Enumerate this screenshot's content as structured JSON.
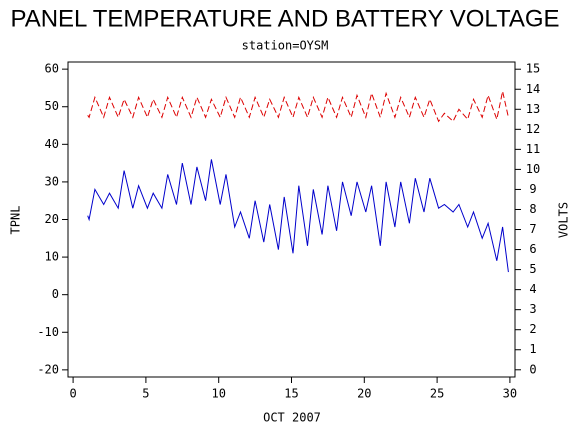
{
  "chart_data": {
    "type": "line",
    "title": "PANEL TEMPERATURE AND BATTERY VOLTAGE",
    "subtitle": "station=OYSM",
    "x_label": "OCT 2007",
    "y_label": "TPNL",
    "y2_label": "VOLTS",
    "x": [
      1.0,
      1.1,
      1.5,
      2.1,
      2.5,
      3.1,
      3.5,
      4.1,
      4.5,
      5.1,
      5.5,
      6.1,
      6.5,
      7.1,
      7.5,
      8.1,
      8.5,
      9.1,
      9.5,
      10.1,
      10.5,
      11.1,
      11.5,
      12.1,
      12.5,
      13.1,
      13.5,
      14.1,
      14.5,
      15.1,
      15.5,
      16.1,
      16.5,
      17.1,
      17.5,
      18.1,
      18.5,
      19.1,
      19.5,
      20.1,
      20.5,
      21.1,
      21.5,
      22.1,
      22.5,
      23.1,
      23.5,
      24.1,
      24.5,
      25.1,
      25.5,
      26.1,
      26.5,
      27.1,
      27.5,
      28.1,
      28.5,
      29.1,
      29.5,
      29.9
    ],
    "series": [
      {
        "name": "TPNL",
        "color": "#0000cc",
        "axis": "y",
        "values": [
          21,
          20,
          28,
          24,
          27,
          23,
          33,
          23,
          29,
          23,
          27,
          23,
          32,
          24,
          35,
          24,
          34,
          25,
          36,
          24,
          32,
          18,
          22,
          15,
          25,
          14,
          24,
          12,
          26,
          11,
          29,
          13,
          28,
          16,
          29,
          17,
          30,
          21,
          30,
          22,
          29,
          13,
          30,
          18,
          30,
          19,
          31,
          22,
          31,
          23,
          24,
          22,
          24,
          18,
          22,
          15,
          19,
          9,
          18,
          6
        ]
      },
      {
        "name": "VOLTS",
        "color": "#dd0000",
        "axis": "y2",
        "dashed": true,
        "values": [
          12.7,
          12.6,
          13.6,
          12.6,
          13.6,
          12.6,
          13.5,
          12.6,
          13.6,
          12.6,
          13.5,
          12.6,
          13.6,
          12.6,
          13.6,
          12.6,
          13.6,
          12.6,
          13.5,
          12.6,
          13.6,
          12.6,
          13.6,
          12.6,
          13.6,
          12.6,
          13.5,
          12.6,
          13.6,
          12.6,
          13.6,
          12.6,
          13.6,
          12.6,
          13.6,
          12.6,
          13.6,
          12.6,
          13.7,
          12.6,
          13.8,
          12.6,
          13.8,
          12.6,
          13.6,
          12.6,
          13.6,
          12.6,
          13.5,
          12.4,
          12.8,
          12.4,
          13.0,
          12.5,
          13.5,
          12.6,
          13.7,
          12.5,
          13.9,
          12.6
        ]
      }
    ],
    "xlim": [
      -0.35,
      30.35
    ],
    "xticks": [
      0,
      5,
      10,
      15,
      20,
      25,
      30
    ],
    "ylim": [
      -21.9,
      61.9
    ],
    "yticks": [
      -20,
      -10,
      0,
      10,
      20,
      30,
      40,
      50,
      60
    ],
    "y2lim": [
      -0.36,
      15.36
    ],
    "y2ticks": [
      0,
      1,
      2,
      3,
      4,
      5,
      6,
      7,
      8,
      9,
      10,
      11,
      12,
      13,
      14,
      15
    ]
  }
}
